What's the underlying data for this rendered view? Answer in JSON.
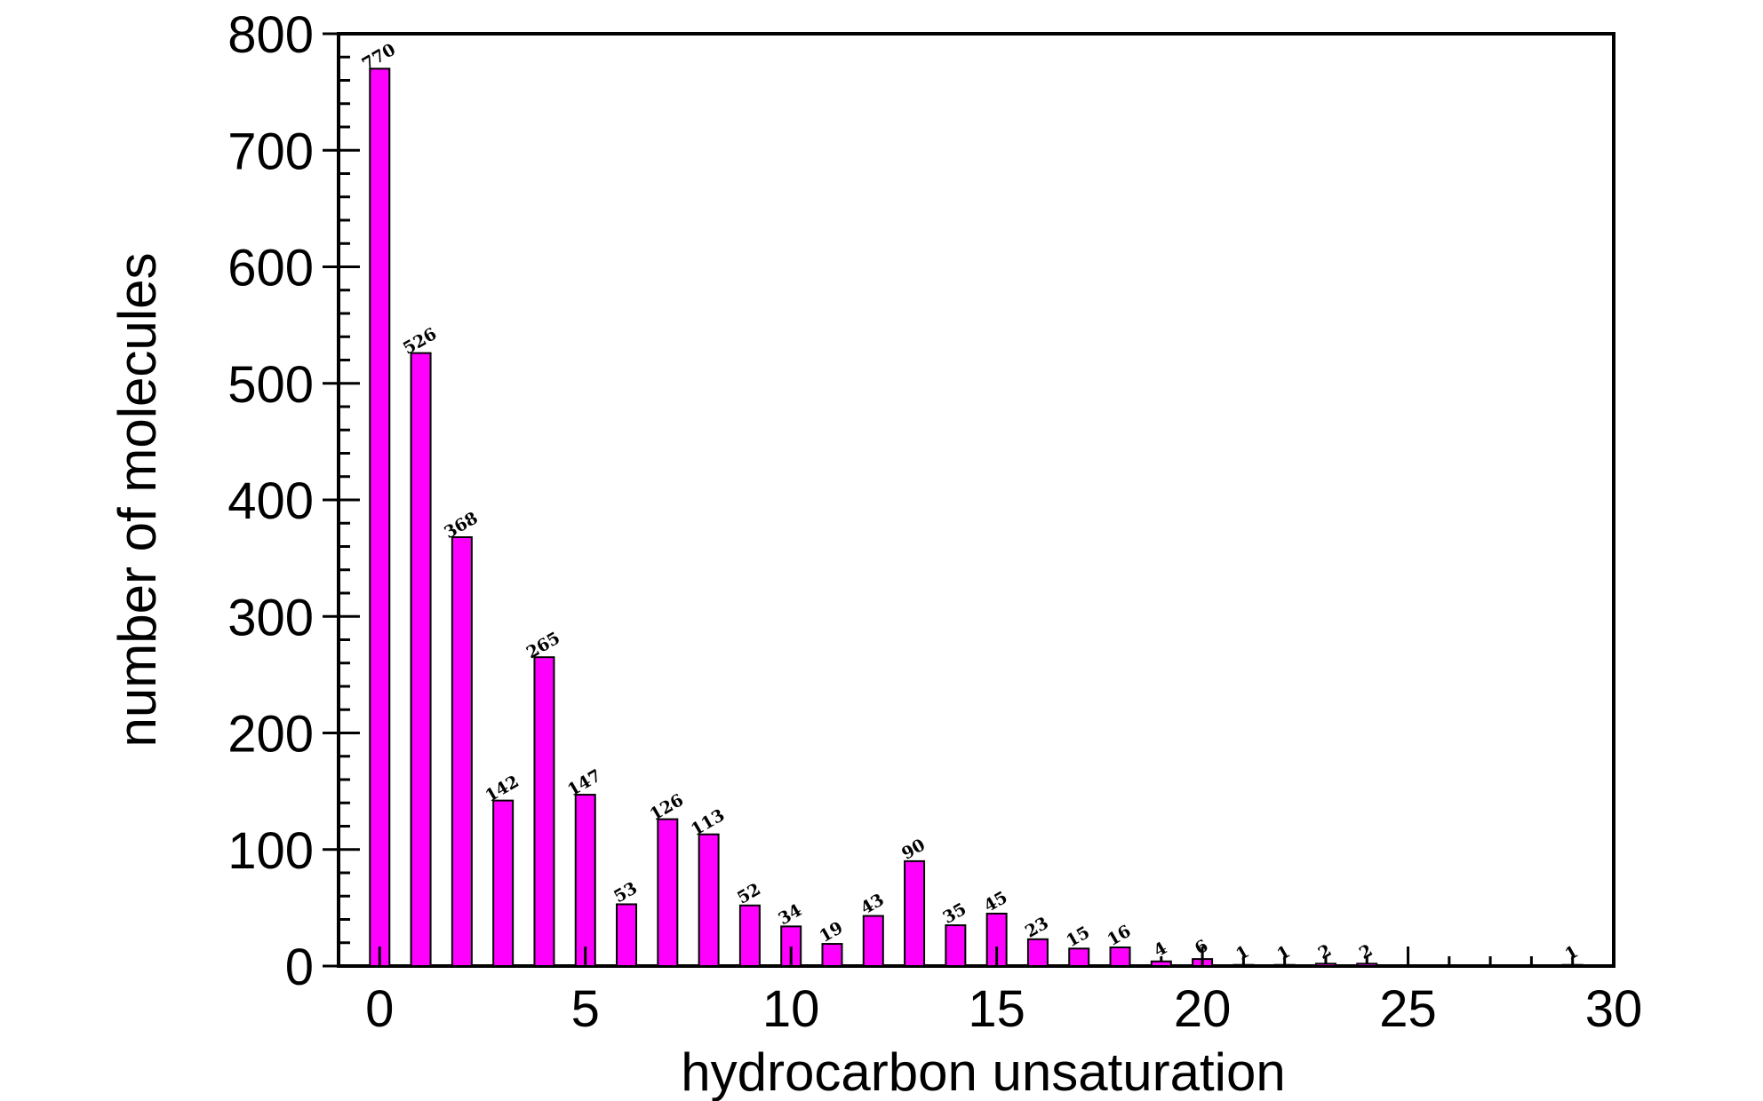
{
  "chart_data": {
    "type": "bar",
    "title": "",
    "xlabel": "hydrocarbon unsaturation",
    "ylabel": "number of molecules",
    "xlim": [
      -1,
      30
    ],
    "ylim": [
      0,
      800
    ],
    "x_ticks": [
      0,
      5,
      10,
      15,
      20,
      25,
      30
    ],
    "y_ticks": [
      0,
      100,
      200,
      300,
      400,
      500,
      600,
      700,
      800
    ],
    "x_tick_labels": [
      "0",
      "5",
      "10",
      "15",
      "20",
      "25",
      "30"
    ],
    "y_tick_labels": [
      "0",
      "100",
      "200",
      "300",
      "400",
      "500",
      "600",
      "700",
      "800"
    ],
    "grid": false,
    "legend": "none",
    "bar_color": "#ff00ff",
    "bar_edge_color": "#000000",
    "x": [
      0,
      1,
      2,
      3,
      4,
      5,
      6,
      7,
      8,
      9,
      10,
      11,
      12,
      13,
      14,
      15,
      16,
      17,
      18,
      19,
      20,
      21,
      22,
      23,
      24,
      29
    ],
    "values": [
      770,
      526,
      368,
      142,
      265,
      147,
      53,
      126,
      113,
      52,
      34,
      19,
      43,
      90,
      35,
      45,
      23,
      15,
      16,
      4,
      6,
      1,
      1,
      2,
      2,
      1
    ],
    "data_labels": [
      "770",
      "526",
      "368",
      "142",
      "265",
      "147",
      "53",
      "126",
      "113",
      "52",
      "34",
      "19",
      "43",
      "90",
      "35",
      "45",
      "23",
      "15",
      "16",
      "4",
      "6",
      "1",
      "1",
      "2",
      "2",
      "1"
    ]
  }
}
